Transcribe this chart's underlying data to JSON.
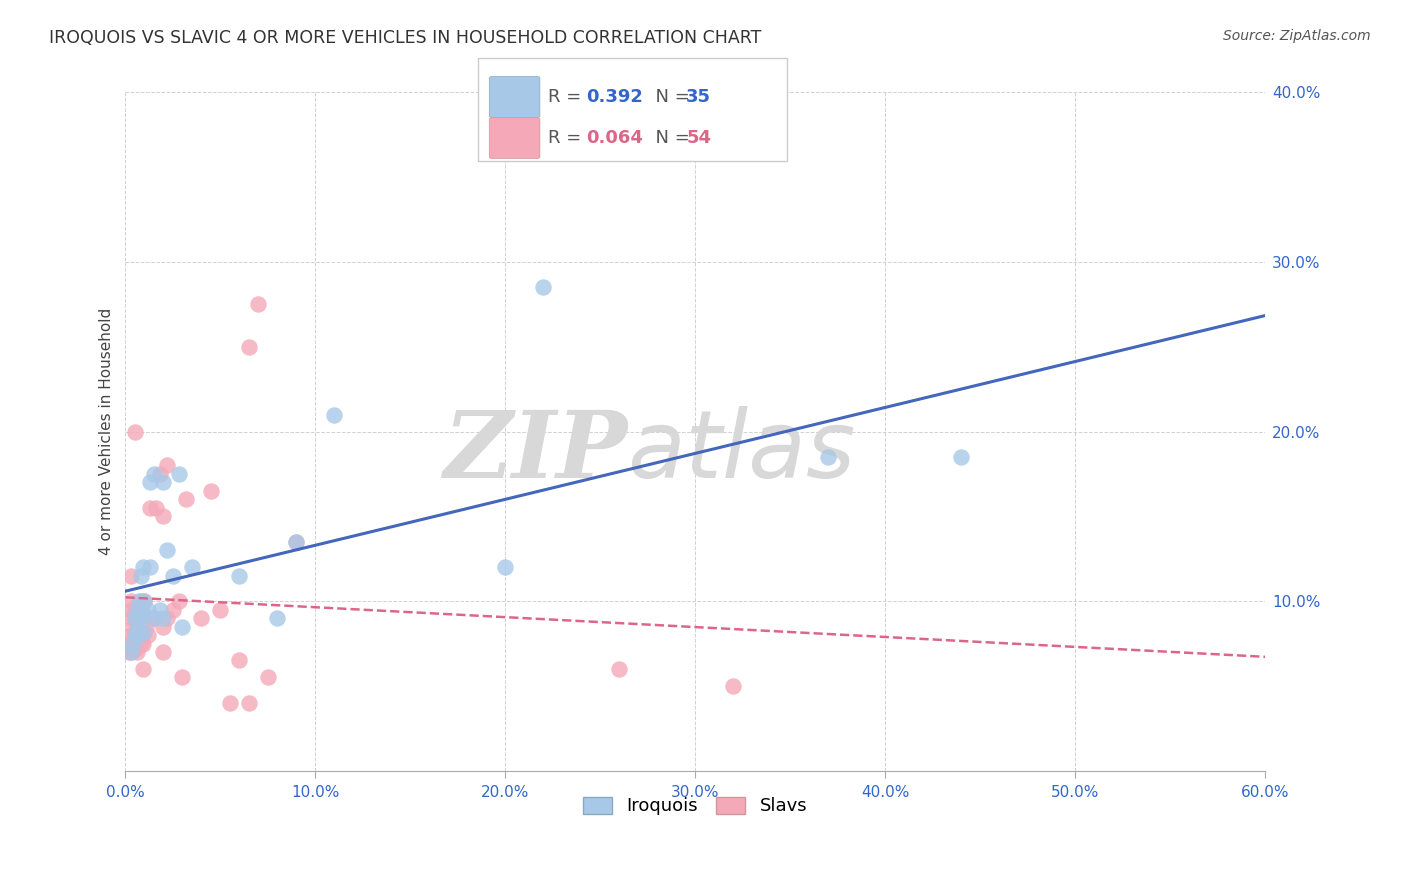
{
  "title": "IROQUOIS VS SLAVIC 4 OR MORE VEHICLES IN HOUSEHOLD CORRELATION CHART",
  "source": "Source: ZipAtlas.com",
  "ylabel": "4 or more Vehicles in Household",
  "xlim": [
    0.0,
    0.6
  ],
  "ylim": [
    0.0,
    0.4
  ],
  "xticks": [
    0.0,
    0.1,
    0.2,
    0.3,
    0.4,
    0.5,
    0.6
  ],
  "yticks": [
    0.0,
    0.1,
    0.2,
    0.3,
    0.4
  ],
  "xtick_labels": [
    "0.0%",
    "10.0%",
    "20.0%",
    "30.0%",
    "40.0%",
    "50.0%",
    "60.0%"
  ],
  "ytick_labels": [
    "",
    "10.0%",
    "20.0%",
    "30.0%",
    "40.0%"
  ],
  "legend_blue_r": "0.392",
  "legend_blue_n": "35",
  "legend_pink_r": "0.064",
  "legend_pink_n": "54",
  "legend_label_blue": "Iroquois",
  "legend_label_pink": "Slavs",
  "watermark_zip": "ZIP",
  "watermark_atlas": "atlas",
  "blue_scatter_color": "#A8C8E8",
  "pink_scatter_color": "#F4A8B8",
  "blue_line_color": "#4466BB",
  "pink_line_color": "#DD6688",
  "iroquois_x": [
    0.003,
    0.004,
    0.005,
    0.005,
    0.006,
    0.006,
    0.007,
    0.007,
    0.008,
    0.008,
    0.009,
    0.01,
    0.01,
    0.01,
    0.012,
    0.013,
    0.013,
    0.015,
    0.015,
    0.018,
    0.02,
    0.02,
    0.022,
    0.025,
    0.028,
    0.03,
    0.035,
    0.06,
    0.08,
    0.09,
    0.11,
    0.2,
    0.22,
    0.37,
    0.44
  ],
  "iroquois_y": [
    0.07,
    0.075,
    0.08,
    0.09,
    0.085,
    0.095,
    0.08,
    0.1,
    0.09,
    0.115,
    0.12,
    0.082,
    0.092,
    0.1,
    0.095,
    0.17,
    0.12,
    0.09,
    0.175,
    0.095,
    0.09,
    0.17,
    0.13,
    0.115,
    0.175,
    0.085,
    0.12,
    0.115,
    0.09,
    0.135,
    0.21,
    0.12,
    0.285,
    0.185,
    0.185
  ],
  "slavic_x": [
    0.002,
    0.002,
    0.003,
    0.003,
    0.003,
    0.003,
    0.003,
    0.003,
    0.003,
    0.004,
    0.004,
    0.005,
    0.005,
    0.005,
    0.005,
    0.005,
    0.006,
    0.006,
    0.007,
    0.008,
    0.008,
    0.008,
    0.009,
    0.009,
    0.01,
    0.01,
    0.011,
    0.012,
    0.013,
    0.014,
    0.015,
    0.016,
    0.018,
    0.02,
    0.02,
    0.02,
    0.022,
    0.022,
    0.025,
    0.028,
    0.03,
    0.032,
    0.04,
    0.045,
    0.05,
    0.055,
    0.06,
    0.065,
    0.065,
    0.07,
    0.075,
    0.09,
    0.26,
    0.32
  ],
  "slavic_y": [
    0.07,
    0.075,
    0.07,
    0.075,
    0.08,
    0.09,
    0.095,
    0.1,
    0.115,
    0.075,
    0.085,
    0.072,
    0.08,
    0.09,
    0.095,
    0.2,
    0.07,
    0.085,
    0.08,
    0.075,
    0.095,
    0.1,
    0.06,
    0.075,
    0.082,
    0.1,
    0.085,
    0.08,
    0.155,
    0.09,
    0.09,
    0.155,
    0.175,
    0.07,
    0.085,
    0.15,
    0.09,
    0.18,
    0.095,
    0.1,
    0.055,
    0.16,
    0.09,
    0.165,
    0.095,
    0.04,
    0.065,
    0.04,
    0.25,
    0.275,
    0.055,
    0.135,
    0.06,
    0.05
  ]
}
